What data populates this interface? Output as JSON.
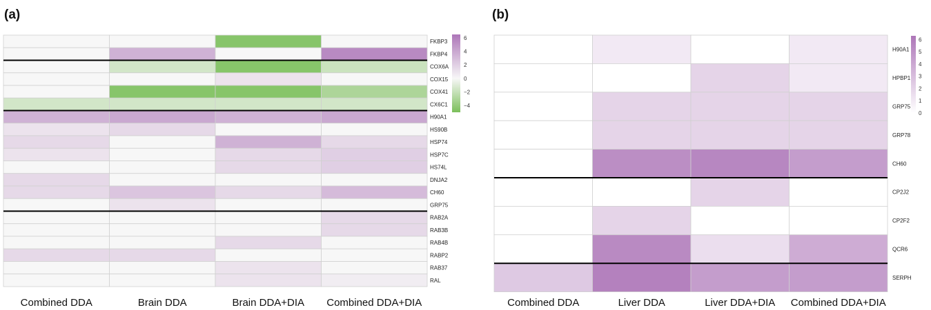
{
  "chart_data": [
    {
      "type": "heatmap",
      "panel": "(a)",
      "columns": [
        "Combined DDA",
        "Brain DDA",
        "Brain DDA+DIA",
        "Combined DDA+DIA"
      ],
      "rows": [
        "FKBP3",
        "FKBP4",
        "COX6A",
        "COX15",
        "COX41",
        "CX6C1",
        "H90A1",
        "HS90B",
        "HSP74",
        "HSP7C",
        "HS74L",
        "DNJA2",
        "CH60",
        "GRP75",
        "RAB2A",
        "RAB3B",
        "RAB4B",
        "RABP2",
        "RAB37",
        "RAL"
      ],
      "values": [
        [
          0,
          0,
          -4.5,
          0
        ],
        [
          0,
          3.5,
          0,
          5.5
        ],
        [
          0,
          -1.5,
          -4.5,
          -1.8
        ],
        [
          0,
          0,
          1,
          0
        ],
        [
          0,
          -4.5,
          -4.5,
          -3
        ],
        [
          -1.5,
          -1.5,
          -1.5,
          -1.5
        ],
        [
          3.5,
          4,
          3.5,
          4
        ],
        [
          1,
          1.5,
          0,
          0
        ],
        [
          1.5,
          0,
          3.5,
          1.5
        ],
        [
          1,
          0,
          1.5,
          2
        ],
        [
          0,
          0,
          1.5,
          2
        ],
        [
          1.5,
          0,
          0,
          0
        ],
        [
          1.5,
          2.5,
          1.5,
          3
        ],
        [
          0,
          1,
          0,
          0
        ],
        [
          0,
          0,
          0,
          1.5
        ],
        [
          0,
          0,
          0,
          1.5
        ],
        [
          0,
          0,
          1.5,
          0
        ],
        [
          1.5,
          1.5,
          0,
          0
        ],
        [
          0,
          0,
          1,
          0
        ],
        [
          0,
          0,
          1,
          0.5
        ]
      ],
      "group_breaks_after_row": [
        1,
        5,
        13
      ],
      "colorbar": {
        "min": -5,
        "max": 6.5,
        "ticks": [
          6,
          4,
          2,
          0,
          -2,
          -4
        ]
      },
      "colors": {
        "neg": "#7bbf5a",
        "zero": "#f7f7f7",
        "pos": "#ad76b8"
      }
    },
    {
      "type": "heatmap",
      "panel": "(b)",
      "columns": [
        "Combined DDA",
        "Liver DDA",
        "Liver DDA+DIA",
        "Combined DDA+DIA"
      ],
      "rows": [
        "H90A1",
        "HPBP1",
        "GRP75",
        "GRP78",
        "CH60",
        "CP2J2",
        "CP2F2",
        "QCR6",
        "SERPH"
      ],
      "values": [
        [
          0,
          1,
          0,
          1
        ],
        [
          0,
          0,
          2,
          1
        ],
        [
          0,
          2,
          2,
          2
        ],
        [
          0,
          2,
          2,
          2
        ],
        [
          0,
          5.2,
          5.5,
          4.5
        ],
        [
          0,
          0,
          2,
          0
        ],
        [
          0,
          2,
          0,
          0
        ],
        [
          0,
          5.4,
          1.5,
          3.8
        ],
        [
          2.5,
          5.8,
          4.5,
          4.5
        ]
      ],
      "group_breaks_after_row": [
        4,
        7
      ],
      "colorbar": {
        "min": 0,
        "max": 6.3,
        "ticks": [
          6,
          5,
          4,
          3,
          2,
          1,
          0
        ]
      },
      "colors": {
        "zero": "#ffffff",
        "pos": "#ad76b8"
      }
    }
  ]
}
